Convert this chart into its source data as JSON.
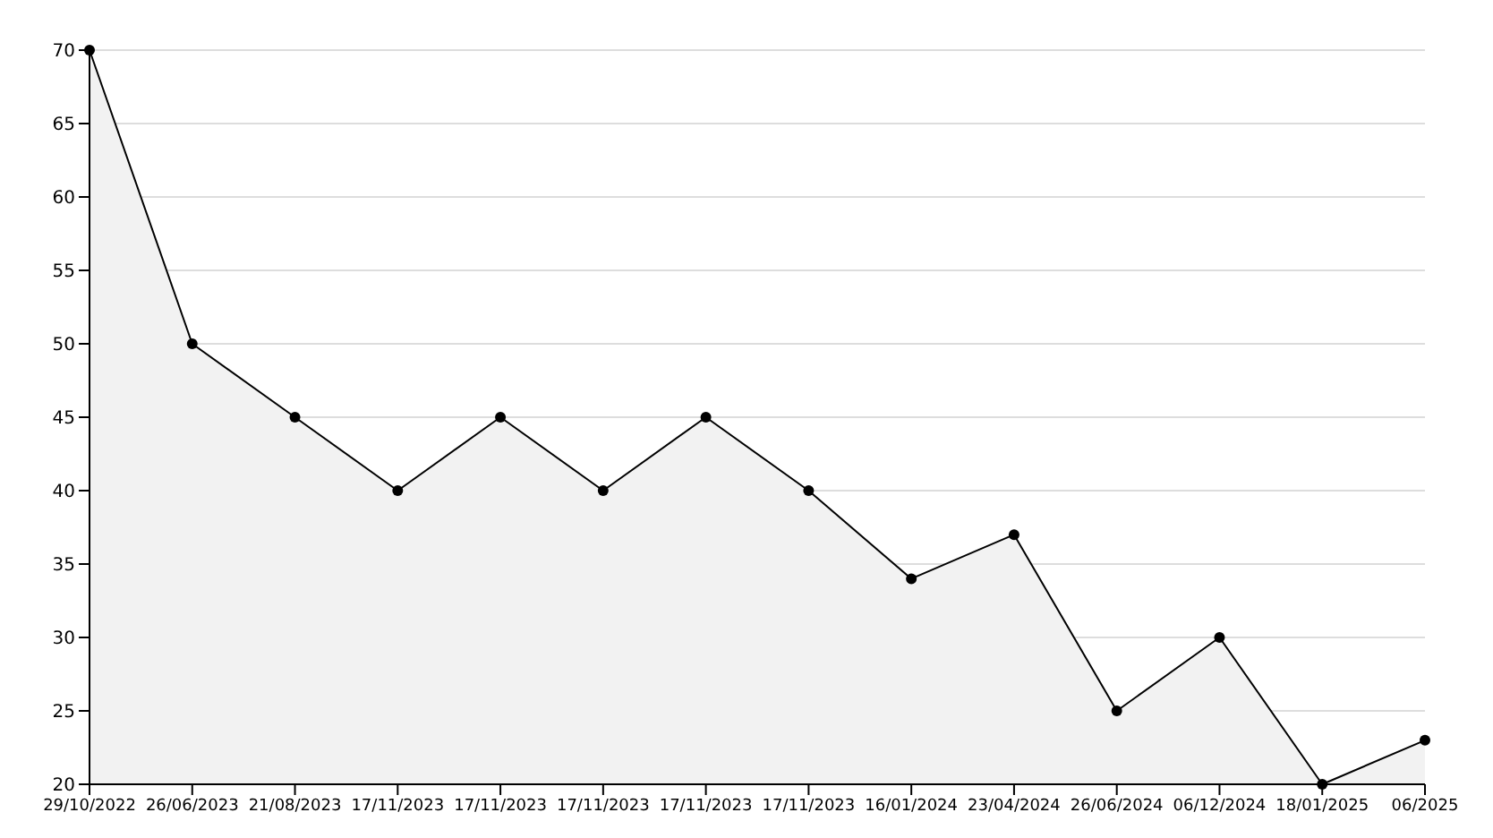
{
  "chart_data": {
    "type": "area",
    "categories": [
      "29/10/2022",
      "26/06/2023",
      "21/08/2023",
      "17/11/2023",
      "17/11/2023",
      "17/11/2023",
      "17/11/2023",
      "17/11/2023",
      "16/01/2024",
      "23/04/2024",
      "26/06/2024",
      "06/12/2024",
      "18/01/2025",
      "06/2025"
    ],
    "series": [
      {
        "color": "#000000",
        "values": [
          70,
          50,
          45,
          40,
          45,
          40,
          45,
          40,
          34,
          37,
          25,
          30,
          20,
          23
        ]
      }
    ],
    "ylim": [
      20,
      70
    ],
    "yticks": [
      20,
      25,
      30,
      35,
      40,
      45,
      50,
      55,
      60,
      65,
      70
    ],
    "grid": "y",
    "marker": "circle",
    "line_style": "solid"
  }
}
